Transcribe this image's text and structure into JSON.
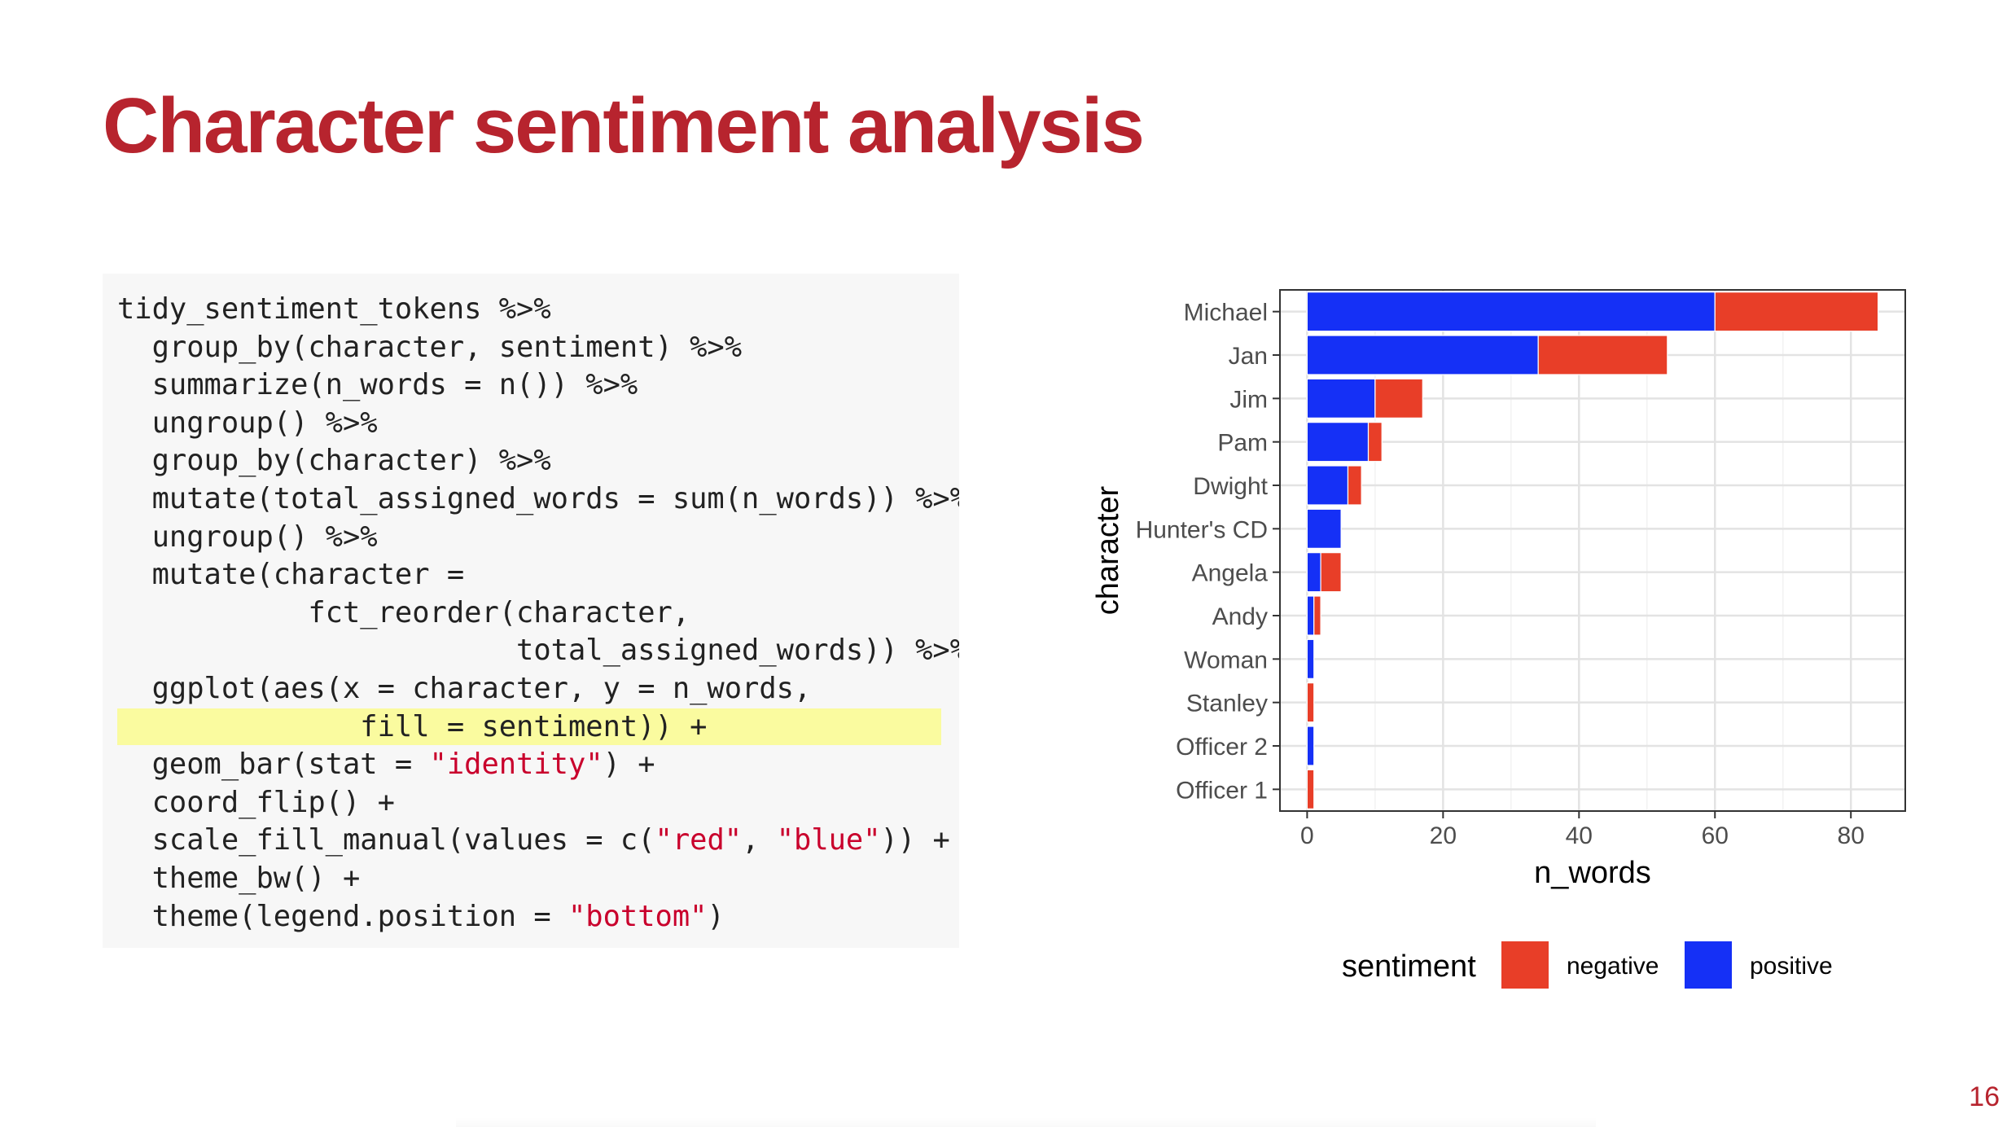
{
  "slide": {
    "title": "Character sentiment analysis",
    "page_number": "16"
  },
  "code": {
    "lines": [
      [
        {
          "t": "tidy_sentiment_tokens %>%"
        }
      ],
      [
        {
          "t": "  group_by(character, sentiment) %>%"
        }
      ],
      [
        {
          "t": "  summarize(n_words = n()) %>%"
        }
      ],
      [
        {
          "t": "  ungroup() %>%"
        }
      ],
      [
        {
          "t": "  group_by(character) %>%"
        }
      ],
      [
        {
          "t": "  mutate(total_assigned_words = sum(n_words)) %>%"
        }
      ],
      [
        {
          "t": "  ungroup() %>%"
        }
      ],
      [
        {
          "t": "  mutate(character ="
        }
      ],
      [
        {
          "t": "           fct_reorder(character,"
        }
      ],
      [
        {
          "t": "                       total_assigned_words)) %>%"
        }
      ],
      [
        {
          "t": "  ggplot(aes(x = character, y = n_words,"
        }
      ],
      [
        {
          "t": "              fill = sentiment)) +"
        }
      ],
      [
        {
          "t": "  geom_bar(stat = "
        },
        {
          "t": "\"identity\"",
          "s": true
        },
        {
          "t": ") +"
        }
      ],
      [
        {
          "t": "  coord_flip() +"
        }
      ],
      [
        {
          "t": "  scale_fill_manual(values = c("
        },
        {
          "t": "\"red\"",
          "s": true
        },
        {
          "t": ", "
        },
        {
          "t": "\"blue\"",
          "s": true
        },
        {
          "t": ")) +"
        }
      ],
      [
        {
          "t": "  theme_bw() +"
        }
      ],
      [
        {
          "t": "  theme(legend.position = "
        },
        {
          "t": "\"bottom\"",
          "s": true
        },
        {
          "t": ")"
        }
      ]
    ],
    "highlighted_line": 11,
    "highlight_color": "#fafb9f",
    "string_color": "#c9002c"
  },
  "chart_data": {
    "type": "bar",
    "orientation": "horizontal",
    "stacked": true,
    "title": "",
    "xlabel": "n_words",
    "ylabel": "character",
    "categories": [
      "Michael",
      "Jan",
      "Jim",
      "Pam",
      "Dwight",
      "Hunter's CD",
      "Angela",
      "Andy",
      "Woman",
      "Stanley",
      "Officer 2",
      "Officer 1"
    ],
    "series": [
      {
        "name": "positive",
        "color": "#1530f6",
        "values": [
          60,
          34,
          10,
          9,
          6,
          5,
          2,
          1,
          1,
          0,
          1,
          0
        ]
      },
      {
        "name": "negative",
        "color": "#e83e28",
        "values": [
          24,
          19,
          7,
          2,
          2,
          0,
          3,
          1,
          0,
          1,
          0,
          1
        ]
      }
    ],
    "stack_order": [
      "positive",
      "negative"
    ],
    "xlim": [
      -4,
      88
    ],
    "xticks": [
      0,
      20,
      40,
      60,
      80
    ],
    "grid": true,
    "theme": "bw",
    "legend": {
      "position": "bottom",
      "title": "sentiment",
      "entries": [
        {
          "label": "negative",
          "color": "#e83e28"
        },
        {
          "label": "positive",
          "color": "#1530f6"
        }
      ]
    }
  }
}
